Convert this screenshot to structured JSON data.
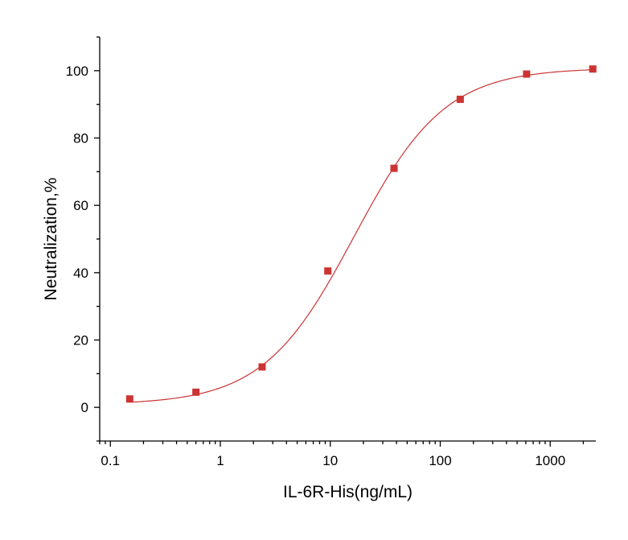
{
  "chart_data": {
    "type": "scatter",
    "title": "",
    "xlabel": "IL-6R-His(ng/mL)",
    "ylabel": "Neutralization,%",
    "xscale": "log",
    "xlim": [
      0.08,
      2600
    ],
    "ylim": [
      -10,
      110
    ],
    "grid": false,
    "legend": "none",
    "x_ticks": [
      0.1,
      1,
      10,
      100,
      1000
    ],
    "x_tick_labels": [
      "0.1",
      "1",
      "10",
      "100",
      "1000"
    ],
    "y_ticks": [
      0,
      20,
      40,
      60,
      80,
      100
    ],
    "y_tick_labels": [
      "0",
      "20",
      "40",
      "60",
      "80",
      "100"
    ],
    "series": [
      {
        "marker": "square",
        "color": "#cc3333",
        "x": [
          0.15,
          0.6,
          2.4,
          9.5,
          38,
          152,
          610,
          2440
        ],
        "y": [
          2.5,
          4.5,
          12,
          40.5,
          71,
          91.5,
          99,
          100.5
        ]
      }
    ],
    "fit": {
      "type": "4PL",
      "color": "#cc3333",
      "bottom": 0.8,
      "top": 100.8,
      "ec50": 16.5,
      "hill": 1.05
    }
  }
}
